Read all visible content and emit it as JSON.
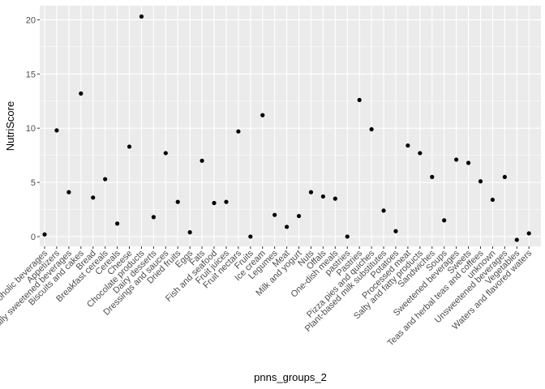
{
  "chart_data": {
    "type": "scatter",
    "xlabel": "pnns_groups_2",
    "ylabel": "NutriScore",
    "ylim": [
      -0.9,
      21.3
    ],
    "yticks": [
      0,
      5,
      10,
      15,
      20
    ],
    "grid": true,
    "colors": {
      "panel": "#ebebeb",
      "grid_major": "#ffffff",
      "point": "#000000",
      "tick_text": "#4d4d4d"
    },
    "categories": [
      "Alcoholic beverages",
      "Appetizers",
      "Artificially sweetened beverages",
      "Biscuits and cakes",
      "Bread",
      "Breakfast cereals",
      "Cereals",
      "Cheese",
      "Chocolate products",
      "Dairy desserts",
      "Dressings and sauces",
      "Dried fruits",
      "Eggs",
      "Fats",
      "Fish and seafood",
      "Fruit juices",
      "Fruit nectars",
      "Fruits",
      "Ice cream",
      "Legumes",
      "Meat",
      "Milk and yogurt",
      "Nuts",
      "Offals",
      "One-dish meals",
      "pastries",
      "Pastries",
      "Pizza pies and quiches",
      "Plant-based milk substitutes",
      "Potatoes",
      "Processed meat",
      "Salty and fatty products",
      "Sandwiches",
      "Soups",
      "Sweetened beverages",
      "Sweets",
      "Teas and herbal teas and coffees",
      "unknown",
      "Unsweetened beverages",
      "Vegetables",
      "Waters and flavored waters"
    ],
    "values": [
      0.2,
      9.8,
      4.1,
      13.2,
      3.6,
      5.3,
      1.2,
      8.3,
      20.3,
      1.8,
      7.7,
      3.2,
      0.4,
      7.0,
      3.1,
      3.2,
      9.7,
      0.0,
      11.2,
      2.0,
      0.9,
      1.9,
      4.1,
      3.7,
      3.5,
      0.0,
      12.6,
      9.9,
      2.4,
      0.5,
      8.4,
      7.7,
      5.5,
      1.5,
      7.1,
      6.8,
      5.1,
      3.4,
      5.5,
      -0.3,
      0.3
    ]
  }
}
